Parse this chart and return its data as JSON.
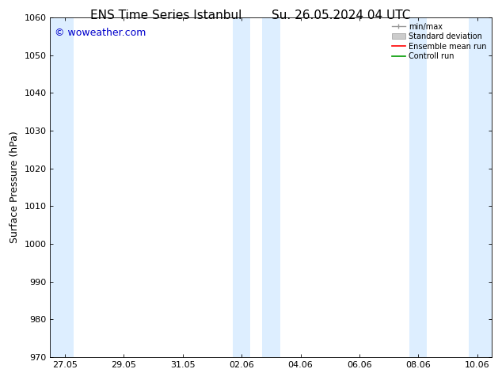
{
  "title_left": "ENS Time Series Istanbul",
  "title_right": "Su. 26.05.2024 04 UTC",
  "ylabel": "Surface Pressure (hPa)",
  "ylim": [
    970,
    1060
  ],
  "yticks": [
    970,
    980,
    990,
    1000,
    1010,
    1020,
    1030,
    1040,
    1050,
    1060
  ],
  "xtick_labels": [
    "27.05",
    "29.05",
    "31.05",
    "02.06",
    "04.06",
    "06.06",
    "08.06",
    "10.06"
  ],
  "xtick_positions": [
    0,
    2,
    4,
    6,
    8,
    10,
    12,
    14
  ],
  "watermark": "© woweather.com",
  "watermark_color": "#0000cc",
  "shaded_regions": [
    {
      "xstart": -0.5,
      "xend": 0.3
    },
    {
      "xstart": 5.7,
      "xend": 6.3
    },
    {
      "xstart": 6.7,
      "xend": 7.3
    },
    {
      "xstart": 11.7,
      "xend": 12.3
    },
    {
      "xstart": 13.7,
      "xend": 14.5
    }
  ],
  "shaded_color": "#ddeeff",
  "background_color": "#ffffff",
  "legend_labels": [
    "min/max",
    "Standard deviation",
    "Ensemble mean run",
    "Controll run"
  ],
  "legend_line_colors": [
    "#999999",
    "#bbbbbb",
    "#ff0000",
    "#009900"
  ],
  "grid_color": "#dddddd",
  "title_fontsize": 11,
  "tick_label_fontsize": 8,
  "ylabel_fontsize": 9,
  "watermark_fontsize": 9,
  "legend_fontsize": 7,
  "num_x_steps": 14
}
